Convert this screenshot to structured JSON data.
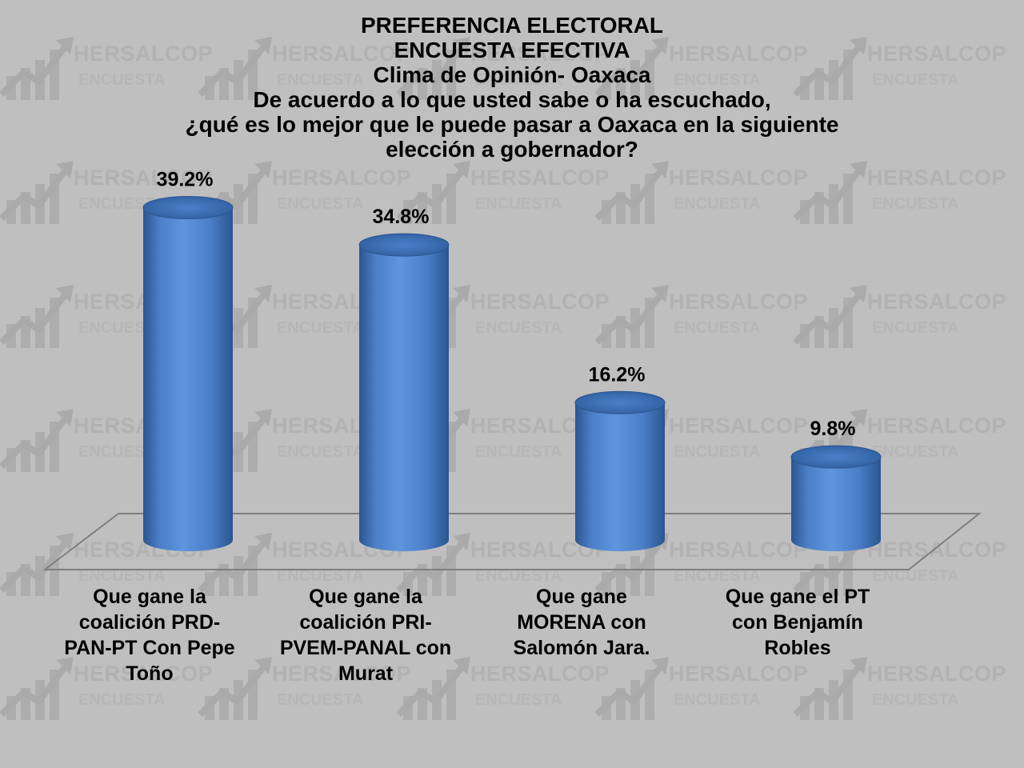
{
  "title_lines": [
    "PREFERENCIA ELECTORAL",
    "ENCUESTA EFECTIVA",
    "Clima de Opinión- Oaxaca",
    "De acuerdo a lo que usted sabe o ha escuchado,",
    "¿qué es lo mejor que le puede pasar a Oaxaca en la siguiente",
    "elección a gobernador?"
  ],
  "watermark": {
    "brand": "HERSALCOP",
    "subtitle": "ENCUESTA",
    "icon": "rising-arrow-chart-icon"
  },
  "colors": {
    "background": "#bfbfbf",
    "bar_main": "#4a7fc8",
    "bar_dark": "#2b5590",
    "bar_light": "#6fa0e0",
    "floor_line": "#7f7f7f"
  },
  "chart_data": {
    "type": "bar",
    "style": "3d-cylinder",
    "categories": [
      "Que gane la coalición PRD-PAN-PT Con Pepe Toño",
      "Que gane la coalición PRI-PVEM-PANAL con Murat",
      "Que gane MORENA con Salomón Jara.",
      "Que gane el PT con Benjamín Robles"
    ],
    "category_lines": [
      [
        "Que gane la",
        "coalición PRD-",
        "PAN-PT Con Pepe",
        "Toño"
      ],
      [
        "Que gane la",
        "coalición PRI-",
        "PVEM-PANAL con",
        "Murat"
      ],
      [
        "Que gane",
        "MORENA con",
        "Salomón Jara."
      ],
      [
        "Que gane el PT",
        "con Benjamín",
        "Robles"
      ]
    ],
    "values": [
      39.2,
      34.8,
      16.2,
      9.8
    ],
    "value_labels": [
      "39.2%",
      "34.8%",
      "16.2%",
      "9.8%"
    ],
    "unit": "%",
    "ylim": [
      0,
      45
    ],
    "grid": false,
    "legend": "none"
  }
}
